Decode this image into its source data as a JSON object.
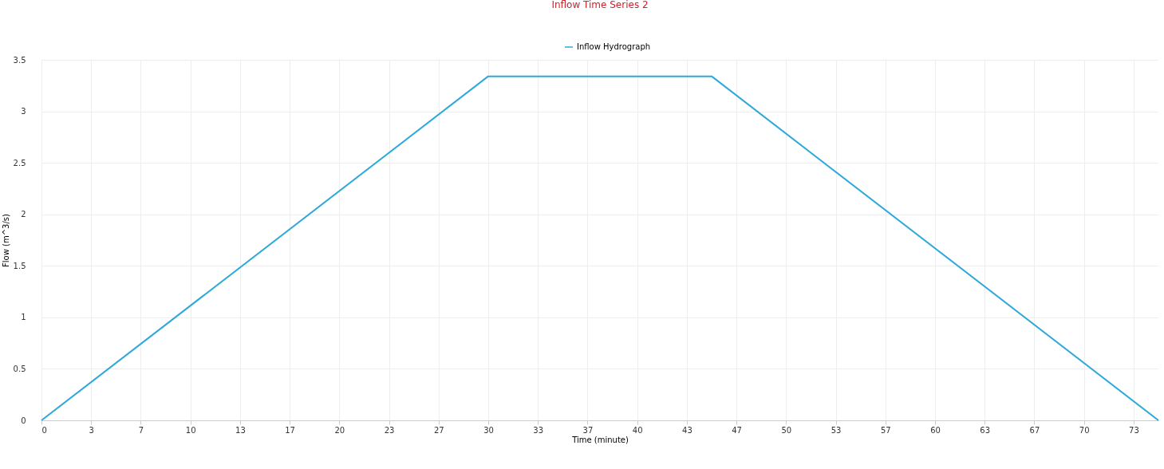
{
  "chart_data": {
    "type": "line",
    "title": "Inflow Time Series 2",
    "xlabel": "Time (minute)",
    "ylabel": "Flow (m^3/s)",
    "x": [
      0,
      30,
      45,
      75
    ],
    "series": [
      {
        "name": "Inflow Hydrograph",
        "color": "#2ea8db",
        "values": [
          0,
          3.34,
          3.34,
          0
        ]
      }
    ],
    "xlim": [
      0,
      75
    ],
    "xticks": [
      0,
      {
        "value": 3.333,
        "label": "3"
      },
      {
        "value": 6.667,
        "label": "7"
      },
      10,
      {
        "value": 13.333,
        "label": "13"
      },
      {
        "value": 16.667,
        "label": "17"
      },
      20,
      {
        "value": 23.333,
        "label": "23"
      },
      {
        "value": 26.667,
        "label": "27"
      },
      30,
      {
        "value": 33.333,
        "label": "33"
      },
      {
        "value": 36.667,
        "label": "37"
      },
      40,
      {
        "value": 43.333,
        "label": "43"
      },
      {
        "value": 46.667,
        "label": "47"
      },
      50,
      {
        "value": 53.333,
        "label": "53"
      },
      {
        "value": 56.667,
        "label": "57"
      },
      60,
      {
        "value": 63.333,
        "label": "63"
      },
      {
        "value": 66.667,
        "label": "67"
      },
      70,
      {
        "value": 73.333,
        "label": "73"
      }
    ],
    "ylim": [
      0,
      3.5
    ],
    "yticks": [
      0,
      0.5,
      1,
      1.5,
      2,
      2.5,
      3,
      3.5
    ],
    "grid": true,
    "legend": "top",
    "marker": "none",
    "line_style": "solid"
  }
}
